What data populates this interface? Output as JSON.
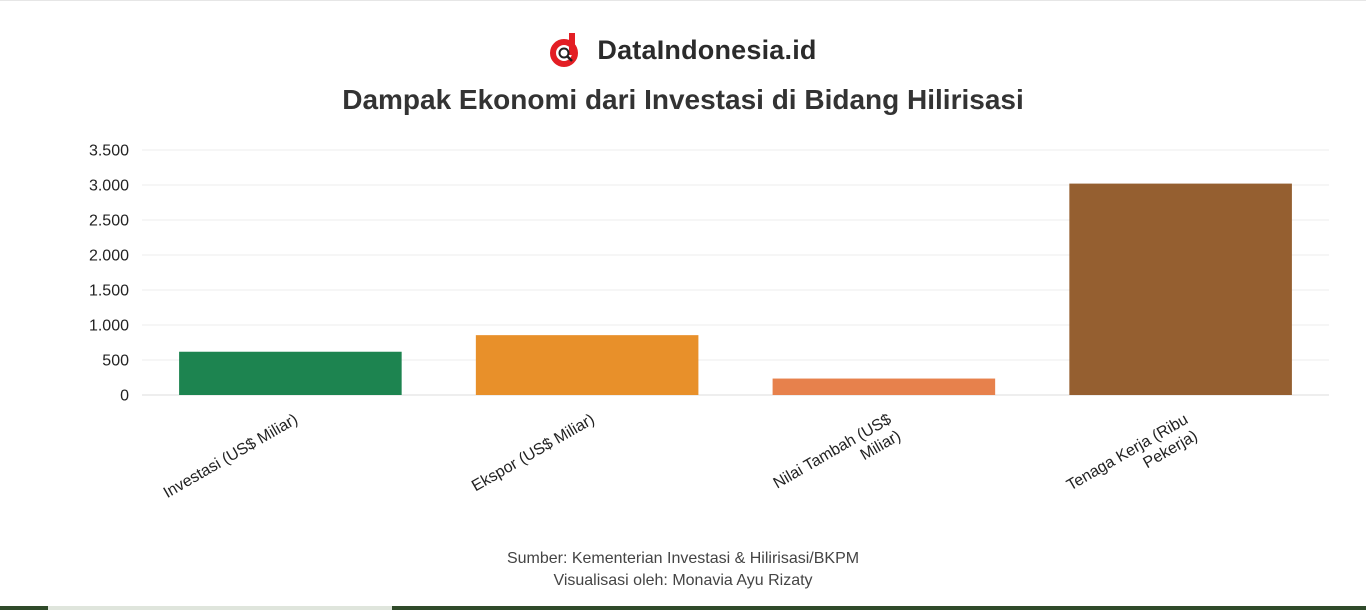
{
  "brand": {
    "name": "DataIndonesia.id",
    "logo_icon": "dataindonesia-logo-icon",
    "accent": "#e31e24"
  },
  "chart_data": {
    "type": "bar",
    "title": "Dampak Ekonomi dari Investasi di Bidang Hilirisasi",
    "categories": [
      "Investasi (US$ Miliar)",
      "Ekspor (US$ Miliar)",
      "Nilai Tambah (US$ Miliar)",
      "Tenaga Kerja (Ribu Pekerja)"
    ],
    "category_lines": [
      [
        "Investasi (US$ Miliar)"
      ],
      [
        "Ekspor (US$ Miliar)"
      ],
      [
        "Nilai Tambah (US$",
        "Miliar)"
      ],
      [
        "Tenaga Kerja (Ribu",
        "Pekerja)"
      ]
    ],
    "values": [
      618,
      855,
      235,
      3020
    ],
    "colors": [
      "#1d8450",
      "#e8902a",
      "#e7814c",
      "#955f30"
    ],
    "yticks": [
      0,
      500,
      1000,
      1500,
      2000,
      2500,
      3000,
      3500
    ],
    "ytick_labels": [
      "0",
      "500",
      "1.000",
      "1.500",
      "2.000",
      "2.500",
      "3.000",
      "3.500"
    ],
    "ylim": [
      0,
      3500
    ],
    "xlabel": "",
    "ylabel": "",
    "grid": true,
    "legend": false
  },
  "footer": {
    "source": "Sumber: Kementerian Investasi & Hilirisasi/BKPM",
    "credit": "Visualisasi oleh: Monavia Ayu Rizaty"
  }
}
